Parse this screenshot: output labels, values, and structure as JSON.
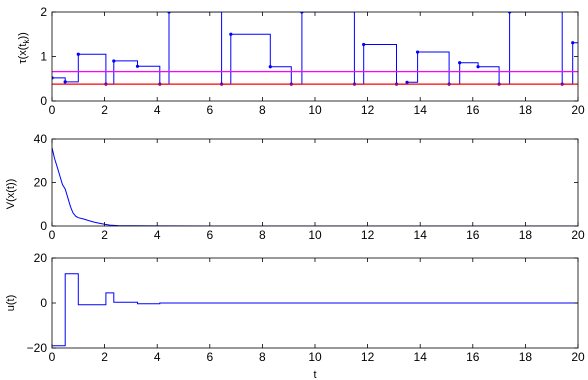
{
  "chart_data": [
    {
      "type": "line",
      "ylabel": "τ(x(t_k))",
      "ylabel_main": "τ(x(t",
      "ylabel_sub": "k",
      "ylabel_tail": "))",
      "xlim": [
        0,
        20
      ],
      "ylim": [
        0,
        2
      ],
      "xticks": [
        0,
        2,
        4,
        6,
        8,
        10,
        12,
        14,
        16,
        18,
        20
      ],
      "yticks": [
        0,
        1,
        2
      ],
      "series": [
        {
          "kind": "step",
          "color": "#0000ff",
          "steps": [
            {
              "t0": 0.0,
              "t1": 0.5,
              "v": 0.52
            },
            {
              "t0": 0.5,
              "t1": 1.0,
              "v": 0.43
            },
            {
              "t0": 1.0,
              "t1": 2.05,
              "v": 1.05
            },
            {
              "t0": 2.05,
              "t1": 2.35,
              "v": 0.38
            },
            {
              "t0": 2.35,
              "t1": 3.25,
              "v": 0.9
            },
            {
              "t0": 3.25,
              "t1": 4.1,
              "v": 0.78
            },
            {
              "t0": 4.1,
              "t1": 4.45,
              "v": 0.38
            },
            {
              "t0": 4.45,
              "t1": 6.45,
              "v": 2.0
            },
            {
              "t0": 6.45,
              "t1": 6.8,
              "v": 0.38
            },
            {
              "t0": 6.8,
              "t1": 8.3,
              "v": 1.5
            },
            {
              "t0": 8.3,
              "t1": 9.1,
              "v": 0.77
            },
            {
              "t0": 9.1,
              "t1": 9.5,
              "v": 0.38
            },
            {
              "t0": 9.5,
              "t1": 11.5,
              "v": 2.0
            },
            {
              "t0": 11.5,
              "t1": 11.85,
              "v": 0.38
            },
            {
              "t0": 11.85,
              "t1": 13.1,
              "v": 1.27
            },
            {
              "t0": 13.1,
              "t1": 13.5,
              "v": 0.38
            },
            {
              "t0": 13.5,
              "t1": 13.9,
              "v": 0.42
            },
            {
              "t0": 13.9,
              "t1": 15.1,
              "v": 1.1
            },
            {
              "t0": 15.1,
              "t1": 15.5,
              "v": 0.38
            },
            {
              "t0": 15.5,
              "t1": 16.2,
              "v": 0.86
            },
            {
              "t0": 16.2,
              "t1": 17.0,
              "v": 0.77
            },
            {
              "t0": 17.0,
              "t1": 17.4,
              "v": 0.38
            },
            {
              "t0": 17.4,
              "t1": 19.4,
              "v": 2.0
            },
            {
              "t0": 19.4,
              "t1": 19.8,
              "v": 0.38
            },
            {
              "t0": 19.8,
              "t1": 20.0,
              "v": 1.31
            }
          ]
        },
        {
          "kind": "hline",
          "color": "#ff00ff",
          "y": 0.66
        },
        {
          "kind": "hline",
          "color": "#ff0000",
          "y": 0.38
        }
      ]
    },
    {
      "type": "line",
      "ylabel": "V(x(t))",
      "xlim": [
        0,
        20
      ],
      "ylim": [
        0,
        40
      ],
      "xticks": [
        0,
        2,
        4,
        6,
        8,
        10,
        12,
        14,
        16,
        18,
        20
      ],
      "yticks": [
        0,
        20,
        40
      ],
      "series": [
        {
          "kind": "line",
          "color": "#0000ff",
          "x": [
            0.0,
            0.1,
            0.2,
            0.3,
            0.4,
            0.5,
            0.6,
            0.7,
            0.8,
            0.9,
            1.0,
            1.2,
            1.4,
            1.6,
            1.8,
            2.0,
            2.2,
            2.5,
            3.0,
            4.0,
            6.0,
            10.0,
            20.0
          ],
          "y": [
            36,
            31,
            27,
            23,
            19,
            17,
            13,
            9,
            6,
            4.5,
            3.8,
            3.2,
            2.5,
            1.8,
            1.3,
            0.8,
            0.4,
            0.2,
            0.1,
            0.05,
            0.02,
            0.01,
            0.0
          ]
        }
      ]
    },
    {
      "type": "line",
      "ylabel": "u(t)",
      "xlabel": "t",
      "xlim": [
        0,
        20
      ],
      "ylim": [
        -20,
        20
      ],
      "xticks": [
        0,
        2,
        4,
        6,
        8,
        10,
        12,
        14,
        16,
        18,
        20
      ],
      "yticks": [
        -20,
        0,
        20
      ],
      "series": [
        {
          "kind": "step",
          "color": "#0000ff",
          "steps": [
            {
              "t0": 0.0,
              "t1": 0.5,
              "v": -19
            },
            {
              "t0": 0.5,
              "t1": 1.0,
              "v": 13
            },
            {
              "t0": 1.0,
              "t1": 2.05,
              "v": -0.8
            },
            {
              "t0": 2.05,
              "t1": 2.35,
              "v": 4.5
            },
            {
              "t0": 2.35,
              "t1": 3.25,
              "v": 0.3
            },
            {
              "t0": 3.25,
              "t1": 4.1,
              "v": -0.3
            },
            {
              "t0": 4.1,
              "t1": 20.0,
              "v": 0.0
            }
          ]
        }
      ]
    }
  ]
}
